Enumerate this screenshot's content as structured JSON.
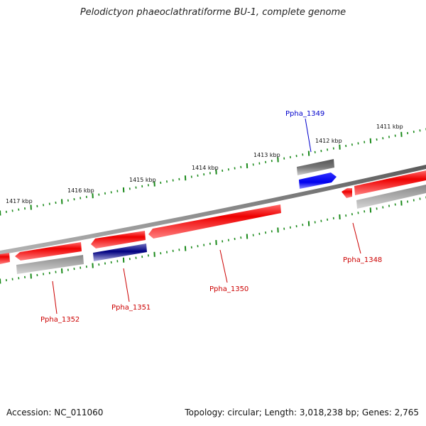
{
  "title": "Pelodictyon phaeoclathratiforme BU-1, complete genome",
  "footer": {
    "accession": "Accession: NC_011060",
    "summary": "Topology: circular; Length: 3,018,238 bp; Genes: 2,765"
  },
  "colors": {
    "backbone": "#7a7a7a",
    "tick": "#1a8a1a",
    "gene_forward": "#ee1111",
    "gene_reverse": "#ee1111",
    "label_red": "#cc0000",
    "label_blue": "#0000cc",
    "feature_gray": "#666666",
    "feature_blue": "#1111ee",
    "feature_navy": "#000080"
  },
  "ticks": [
    {
      "label": "1411 kbp"
    },
    {
      "label": "1412 kbp"
    },
    {
      "label": "1413 kbp"
    },
    {
      "label": "1414 kbp"
    },
    {
      "label": "1415 kbp"
    },
    {
      "label": "1416 kbp"
    },
    {
      "label": "1417 kbp"
    }
  ],
  "genes": [
    {
      "name": "Ppha_1348",
      "color": "red"
    },
    {
      "name": "Ppha_1349",
      "color": "blue"
    },
    {
      "name": "Ppha_1350",
      "color": "red"
    },
    {
      "name": "Ppha_1351",
      "color": "red"
    },
    {
      "name": "Ppha_1352",
      "color": "red"
    }
  ]
}
